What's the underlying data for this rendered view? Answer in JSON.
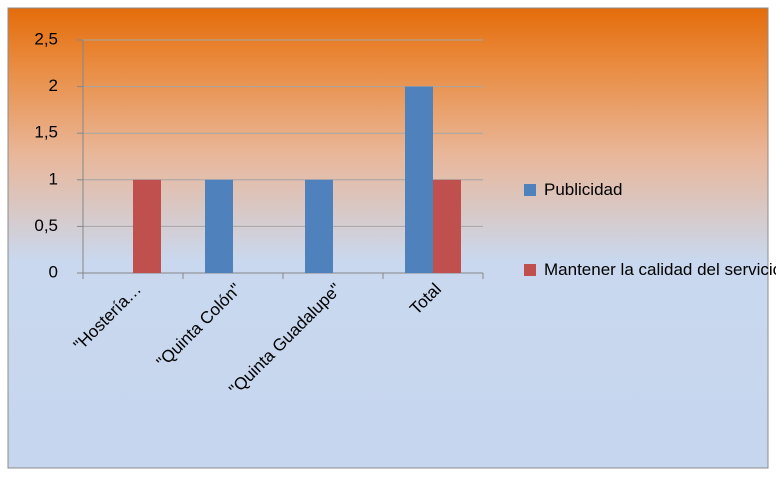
{
  "chart_data": {
    "type": "bar",
    "categories": [
      "\"Hostería…",
      "\"Quinta Colón\"",
      "\"Quinta Guadalupe\"",
      "Total"
    ],
    "series": [
      {
        "name": "Publicidad",
        "color": "#4f81bd",
        "values": [
          0,
          1,
          1,
          2
        ]
      },
      {
        "name": "Mantener la calidad del servicio",
        "color": "#c0504d",
        "values": [
          1,
          0,
          0,
          1
        ]
      }
    ],
    "ylim": [
      0,
      2.5
    ],
    "yticks": [
      0,
      {
        "value": 0.5,
        "label": "0,5"
      },
      1,
      {
        "value": 1.5,
        "label": "1,5"
      },
      2,
      {
        "value": 2.5,
        "label": "2,5"
      }
    ],
    "grid": true,
    "legend": "right"
  }
}
